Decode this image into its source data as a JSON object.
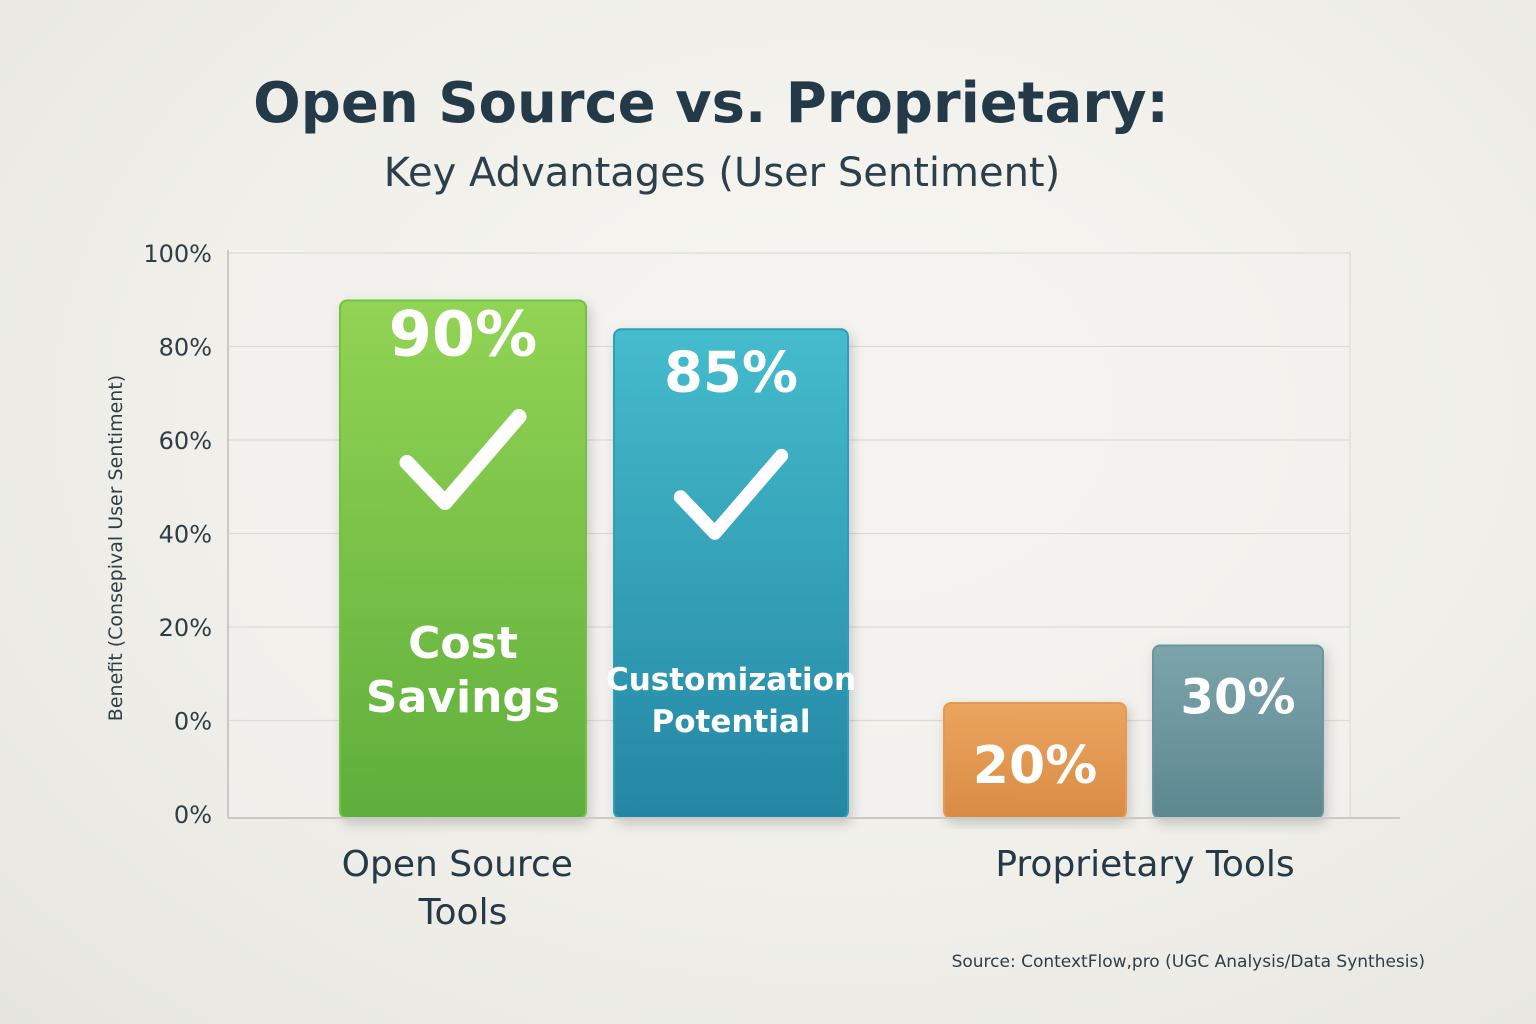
{
  "chart_data": {
    "type": "bar",
    "title": "Open Source vs. Proprietary:",
    "subtitle": "Key Advantages (User Sentiment)",
    "ylabel": "Benefit (Consepival User Sentiment)",
    "xlabel": "",
    "ylim": [
      0,
      100
    ],
    "yticks": [
      "100%",
      "80%",
      "60%",
      "40%",
      "20%",
      "0%",
      "0%"
    ],
    "groups": [
      "Open Source Tools",
      "Proprietary Tools"
    ],
    "bars": [
      {
        "group": "Open Source Tools",
        "value": 90,
        "value_label": "90%",
        "label_lines": [
          "Cost",
          "Savings"
        ],
        "check": true,
        "color": "#72c247"
      },
      {
        "group": "Open Source Tools",
        "value": 85,
        "value_label": "85%",
        "label_lines": [
          "Customization",
          "Potential"
        ],
        "check": true,
        "color": "#2e9fb8"
      },
      {
        "group": "Proprietary Tools",
        "value": 20,
        "value_label": "20%",
        "label_lines": [],
        "check": false,
        "color": "#e39a52"
      },
      {
        "group": "Proprietary Tools",
        "value": 30,
        "value_label": "30%",
        "label_lines": [],
        "check": false,
        "color": "#6a959d"
      }
    ],
    "grid": true,
    "source": "Source: ContextFlow,pro (UGC Analysis/Data Synthesis)"
  }
}
